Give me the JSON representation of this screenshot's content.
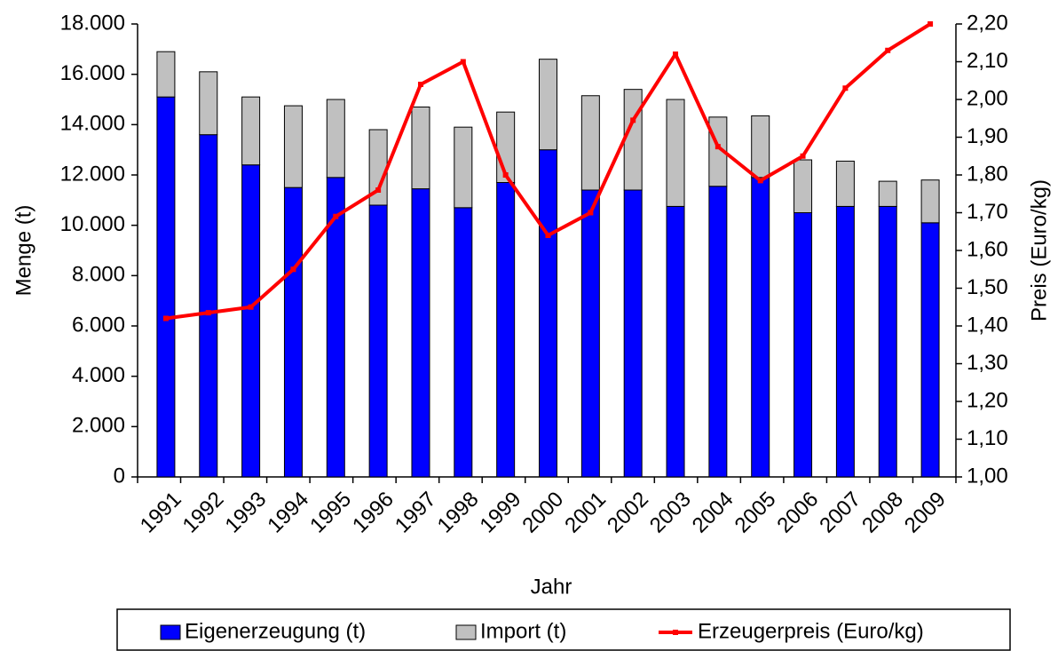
{
  "chart_data": {
    "type": "bar-line",
    "x_label": "Jahr",
    "y_label": "Menge (t)",
    "y2_label": "Preis (Euro/kg)",
    "categories": [
      "1991",
      "1992",
      "1993",
      "1994",
      "1995",
      "1996",
      "1997",
      "1998",
      "1999",
      "2000",
      "2001",
      "2002",
      "2003",
      "2004",
      "2005",
      "2006",
      "2007",
      "2008",
      "2009"
    ],
    "series": [
      {
        "name": "Eigenerzeugung (t)",
        "type": "bar",
        "stacked": true,
        "color": "#0000ff",
        "values": [
          15100,
          13600,
          12400,
          11500,
          11900,
          10800,
          11450,
          10700,
          11700,
          13000,
          11400,
          11400,
          10750,
          11550,
          11900,
          10500,
          10750,
          10750,
          10100
        ]
      },
      {
        "name": "Import (t)",
        "type": "bar",
        "stacked": true,
        "color": "#c0c0c0",
        "values": [
          1800,
          2500,
          2700,
          3250,
          3100,
          3000,
          3250,
          3200,
          2800,
          3600,
          3750,
          4000,
          4250,
          2750,
          2450,
          2100,
          1800,
          1000,
          1700
        ]
      },
      {
        "name": "Erzeugerpreis (Euro/kg)",
        "type": "line",
        "axis": "y2",
        "color": "#ff0000",
        "values": [
          1.42,
          1.435,
          1.45,
          1.55,
          1.69,
          1.76,
          2.04,
          2.1,
          1.8,
          1.64,
          1.7,
          1.945,
          2.12,
          1.875,
          1.785,
          1.85,
          2.03,
          2.13,
          2.2
        ]
      }
    ],
    "ylim": [
      0,
      18000
    ],
    "yticks": [
      0,
      {
        "value": 2000,
        "label": "2.000"
      },
      {
        "value": 4000,
        "label": "4.000"
      },
      {
        "value": 6000,
        "label": "6.000"
      },
      {
        "value": 8000,
        "label": "8.000"
      },
      {
        "value": 10000,
        "label": "10.000"
      },
      {
        "value": 12000,
        "label": "12.000"
      },
      {
        "value": 14000,
        "label": "14.000"
      },
      {
        "value": 16000,
        "label": "16.000"
      },
      {
        "value": 18000,
        "label": "18.000"
      }
    ],
    "y2lim": [
      1.0,
      2.2
    ],
    "y2ticks": [
      {
        "value": 1.0,
        "label": "1,00"
      },
      {
        "value": 1.1,
        "label": "1,10"
      },
      {
        "value": 1.2,
        "label": "1,20"
      },
      {
        "value": 1.3,
        "label": "1,30"
      },
      {
        "value": 1.4,
        "label": "1,40"
      },
      {
        "value": 1.5,
        "label": "1,50"
      },
      {
        "value": 1.6,
        "label": "1,60"
      },
      {
        "value": 1.7,
        "label": "1,70"
      },
      {
        "value": 1.8,
        "label": "1,80"
      },
      {
        "value": 1.9,
        "label": "1,90"
      },
      {
        "value": 2.0,
        "label": "2,00"
      },
      {
        "value": 2.1,
        "label": "2,10"
      },
      {
        "value": 2.2,
        "label": "2,20"
      }
    ],
    "y2_color": "#ff0000",
    "legend": "bottom"
  }
}
